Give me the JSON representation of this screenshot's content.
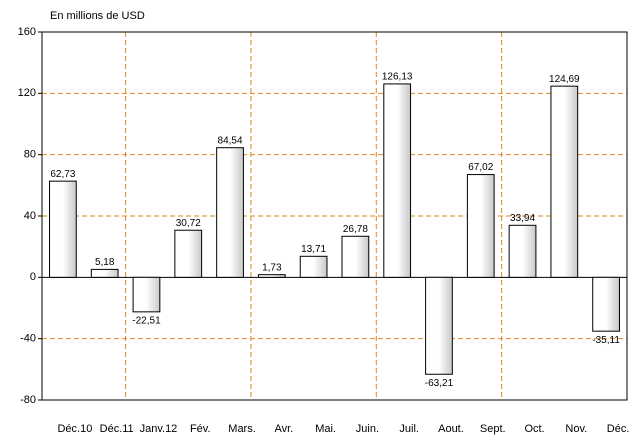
{
  "chart_data": {
    "type": "bar",
    "y_axis_title": "En millions de USD",
    "categories": [
      "Déc.10",
      "Déc.11",
      "Janv.12",
      "Fév.",
      "Mars.",
      "Avr.",
      "Mai.",
      "Juin.",
      "Juil.",
      "Aout.",
      "Sept.",
      "Oct.",
      "Nov.",
      "Déc."
    ],
    "values": [
      62.73,
      5.18,
      -22.51,
      30.72,
      84.54,
      1.73,
      13.71,
      26.78,
      126.13,
      -63.21,
      67.02,
      33.94,
      124.69,
      -35.11
    ],
    "value_labels": [
      "62,73",
      "5,18",
      "-22,51",
      "30,72",
      "84,54",
      "1,73",
      "13,71",
      "26,78",
      "126,13",
      "-63,21",
      "67,02",
      "33,94",
      "124,69",
      "-35,11"
    ],
    "color": "#ffffff",
    "grid_color": "#d98a1e",
    "ylim": [
      -80,
      160
    ],
    "yticks": [
      -80,
      -40,
      0,
      40,
      80,
      120,
      160
    ],
    "grid": true
  }
}
